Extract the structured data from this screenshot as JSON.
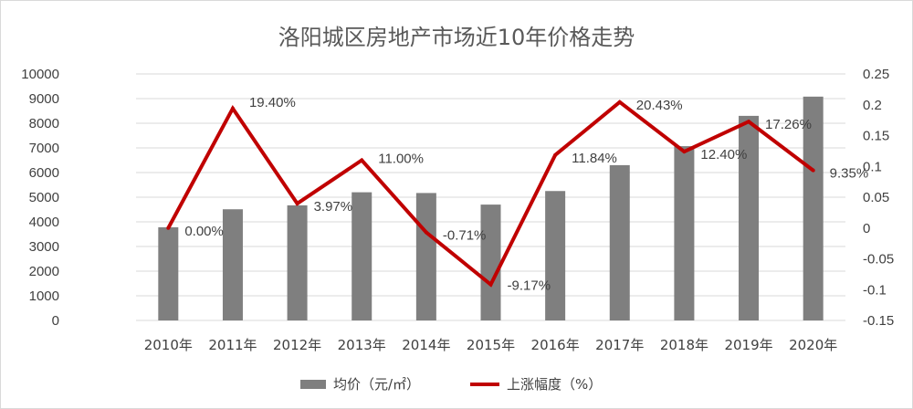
{
  "chart_data": {
    "type": "bar",
    "title": "洛阳城区房地产市场近10年价格走势",
    "categories": [
      "2010年",
      "2011年",
      "2012年",
      "2013年",
      "2014年",
      "2015年",
      "2016年",
      "2017年",
      "2018年",
      "2019年",
      "2020年"
    ],
    "series": [
      {
        "name": "均价（元/㎡）",
        "type": "bar",
        "axis": "left",
        "color": "#7f7f7f",
        "values": [
          3780,
          4510,
          4670,
          5200,
          5170,
          4700,
          5250,
          6300,
          7070,
          8300,
          9080
        ]
      },
      {
        "name": "上涨幅度（%）",
        "type": "line",
        "axis": "right",
        "color": "#c00000",
        "values": [
          0.0,
          0.194,
          0.0397,
          0.11,
          -0.0071,
          -0.0917,
          0.1184,
          0.2043,
          0.124,
          0.1726,
          0.0935
        ],
        "labels": [
          "0.00%",
          "19.40%",
          "3.97%",
          "11.00%",
          "-0.71%",
          "-9.17%",
          "11.84%",
          "20.43%",
          "12.40%",
          "17.26%",
          "9.35%"
        ]
      }
    ],
    "y_left": {
      "ylim": [
        0,
        10000
      ],
      "ticks": [
        "0",
        "1000",
        "2000",
        "3000",
        "4000",
        "5000",
        "6000",
        "7000",
        "8000",
        "9000",
        "10000"
      ]
    },
    "y_right": {
      "ylim": [
        -0.15,
        0.25
      ],
      "ticks": [
        "-0.15",
        "-0.1",
        "-0.05",
        "0",
        "0.05",
        "0.1",
        "0.15",
        "0.2",
        "0.25"
      ]
    },
    "grid": true,
    "legend": "bottom"
  }
}
